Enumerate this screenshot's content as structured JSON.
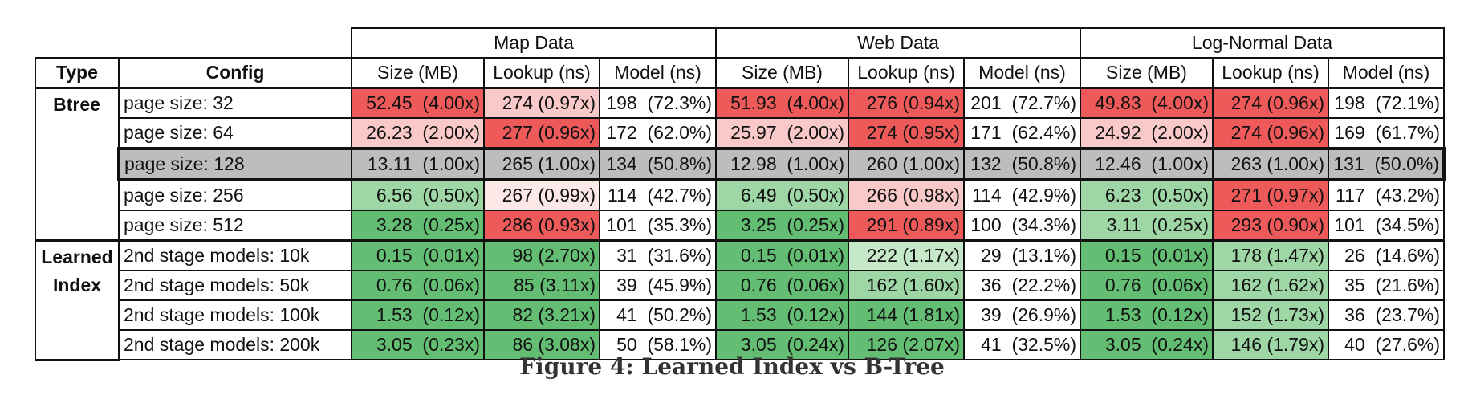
{
  "caption": "Figure 4: Learned Index vs B-Tree",
  "colors": {
    "red_strong": "#ee5a5a",
    "red_light": "#f9c9c9",
    "red_faint": "#fde8e8",
    "green_strong": "#63bd72",
    "green_mid": "#9ed7a5",
    "green_light": "#c5e8c9",
    "base_gray": "#bdbdbd"
  },
  "chart_data": {
    "type": "table",
    "title": "Figure 4: Learned Index vs B-Tree",
    "groups": [
      "Map Data",
      "Web Data",
      "Log-Normal Data"
    ],
    "header": [
      "Type",
      "Config",
      "Size (MB)",
      "Lookup (ns)",
      "Model (ns)",
      "Size (MB)",
      "Lookup (ns)",
      "Model (ns)",
      "Size (MB)",
      "Lookup (ns)",
      "Model (ns)"
    ],
    "sections": [
      {
        "type_label": [
          "Btree"
        ],
        "rows": [
          {
            "config": "page size:   32",
            "base": false,
            "cells": [
              {
                "text": "52.45  (4.00x)",
                "color": "red_strong"
              },
              {
                "text": "274 (0.97x)",
                "color": "red_light"
              },
              {
                "text": "198  (72.3%)",
                "color": ""
              },
              {
                "text": "51.93  (4.00x)",
                "color": "red_strong"
              },
              {
                "text": "276 (0.94x)",
                "color": "red_strong"
              },
              {
                "text": "201  (72.7%)",
                "color": ""
              },
              {
                "text": "49.83  (4.00x)",
                "color": "red_strong"
              },
              {
                "text": "274 (0.96x)",
                "color": "red_strong"
              },
              {
                "text": "198  (72.1%)",
                "color": ""
              }
            ]
          },
          {
            "config": "page size:   64",
            "base": false,
            "cells": [
              {
                "text": "26.23  (2.00x)",
                "color": "red_light"
              },
              {
                "text": "277 (0.96x)",
                "color": "red_strong"
              },
              {
                "text": "172  (62.0%)",
                "color": ""
              },
              {
                "text": "25.97  (2.00x)",
                "color": "red_light"
              },
              {
                "text": "274 (0.95x)",
                "color": "red_strong"
              },
              {
                "text": "171  (62.4%)",
                "color": ""
              },
              {
                "text": "24.92  (2.00x)",
                "color": "red_light"
              },
              {
                "text": "274 (0.96x)",
                "color": "red_strong"
              },
              {
                "text": "169  (61.7%)",
                "color": ""
              }
            ]
          },
          {
            "config": "page size: 128",
            "base": true,
            "cells": [
              {
                "text": "13.11  (1.00x)",
                "color": "base_gray"
              },
              {
                "text": "265 (1.00x)",
                "color": "base_gray"
              },
              {
                "text": "134  (50.8%)",
                "color": "base_gray"
              },
              {
                "text": "12.98  (1.00x)",
                "color": "base_gray"
              },
              {
                "text": "260 (1.00x)",
                "color": "base_gray"
              },
              {
                "text": "132  (50.8%)",
                "color": "base_gray"
              },
              {
                "text": "12.46  (1.00x)",
                "color": "base_gray"
              },
              {
                "text": "263 (1.00x)",
                "color": "base_gray"
              },
              {
                "text": "131  (50.0%)",
                "color": "base_gray"
              }
            ]
          },
          {
            "config": "page size: 256",
            "base": false,
            "cells": [
              {
                "text": "6.56  (0.50x)",
                "color": "green_mid"
              },
              {
                "text": "267 (0.99x)",
                "color": "red_faint"
              },
              {
                "text": "114  (42.7%)",
                "color": ""
              },
              {
                "text": "6.49  (0.50x)",
                "color": "green_mid"
              },
              {
                "text": "266 (0.98x)",
                "color": "red_light"
              },
              {
                "text": "114  (42.9%)",
                "color": ""
              },
              {
                "text": "6.23  (0.50x)",
                "color": "green_mid"
              },
              {
                "text": "271 (0.97x)",
                "color": "red_strong"
              },
              {
                "text": "117  (43.2%)",
                "color": ""
              }
            ]
          },
          {
            "config": "page size: 512",
            "base": false,
            "cells": [
              {
                "text": "3.28  (0.25x)",
                "color": "green_strong"
              },
              {
                "text": "286 (0.93x)",
                "color": "red_strong"
              },
              {
                "text": "101  (35.3%)",
                "color": ""
              },
              {
                "text": "3.25  (0.25x)",
                "color": "green_strong"
              },
              {
                "text": "291 (0.89x)",
                "color": "red_strong"
              },
              {
                "text": "100  (34.3%)",
                "color": ""
              },
              {
                "text": "3.11  (0.25x)",
                "color": "green_mid"
              },
              {
                "text": "293 (0.90x)",
                "color": "red_strong"
              },
              {
                "text": "101  (34.5%)",
                "color": ""
              }
            ]
          }
        ]
      },
      {
        "type_label": [
          "Learned",
          "Index"
        ],
        "rows": [
          {
            "config": "2nd stage models:   10k",
            "base": false,
            "cells": [
              {
                "text": "0.15  (0.01x)",
                "color": "green_strong"
              },
              {
                "text": "98 (2.70x)",
                "color": "green_strong"
              },
              {
                "text": "31  (31.6%)",
                "color": ""
              },
              {
                "text": "0.15  (0.01x)",
                "color": "green_strong"
              },
              {
                "text": "222 (1.17x)",
                "color": "green_light"
              },
              {
                "text": "29  (13.1%)",
                "color": ""
              },
              {
                "text": "0.15  (0.01x)",
                "color": "green_strong"
              },
              {
                "text": "178 (1.47x)",
                "color": "green_mid"
              },
              {
                "text": "26  (14.6%)",
                "color": ""
              }
            ]
          },
          {
            "config": "2nd stage models:   50k",
            "base": false,
            "cells": [
              {
                "text": "0.76  (0.06x)",
                "color": "green_strong"
              },
              {
                "text": "85 (3.11x)",
                "color": "green_strong"
              },
              {
                "text": "39  (45.9%)",
                "color": ""
              },
              {
                "text": "0.76  (0.06x)",
                "color": "green_strong"
              },
              {
                "text": "162 (1.60x)",
                "color": "green_mid"
              },
              {
                "text": "36  (22.2%)",
                "color": ""
              },
              {
                "text": "0.76  (0.06x)",
                "color": "green_strong"
              },
              {
                "text": "162 (1.62x)",
                "color": "green_mid"
              },
              {
                "text": "35  (21.6%)",
                "color": ""
              }
            ]
          },
          {
            "config": "2nd stage models: 100k",
            "base": false,
            "cells": [
              {
                "text": "1.53  (0.12x)",
                "color": "green_strong"
              },
              {
                "text": "82 (3.21x)",
                "color": "green_strong"
              },
              {
                "text": "41  (50.2%)",
                "color": ""
              },
              {
                "text": "1.53  (0.12x)",
                "color": "green_strong"
              },
              {
                "text": "144 (1.81x)",
                "color": "green_strong"
              },
              {
                "text": "39  (26.9%)",
                "color": ""
              },
              {
                "text": "1.53  (0.12x)",
                "color": "green_strong"
              },
              {
                "text": "152 (1.73x)",
                "color": "green_mid"
              },
              {
                "text": "36  (23.7%)",
                "color": ""
              }
            ]
          },
          {
            "config": "2nd stage models: 200k",
            "base": false,
            "cells": [
              {
                "text": "3.05  (0.23x)",
                "color": "green_strong"
              },
              {
                "text": "86 (3.08x)",
                "color": "green_strong"
              },
              {
                "text": "50  (58.1%)",
                "color": ""
              },
              {
                "text": "3.05  (0.24x)",
                "color": "green_strong"
              },
              {
                "text": "126 (2.07x)",
                "color": "green_strong"
              },
              {
                "text": "41  (32.5%)",
                "color": ""
              },
              {
                "text": "3.05  (0.24x)",
                "color": "green_strong"
              },
              {
                "text": "146 (1.79x)",
                "color": "green_mid"
              },
              {
                "text": "40  (27.6%)",
                "color": ""
              }
            ]
          }
        ]
      }
    ]
  }
}
